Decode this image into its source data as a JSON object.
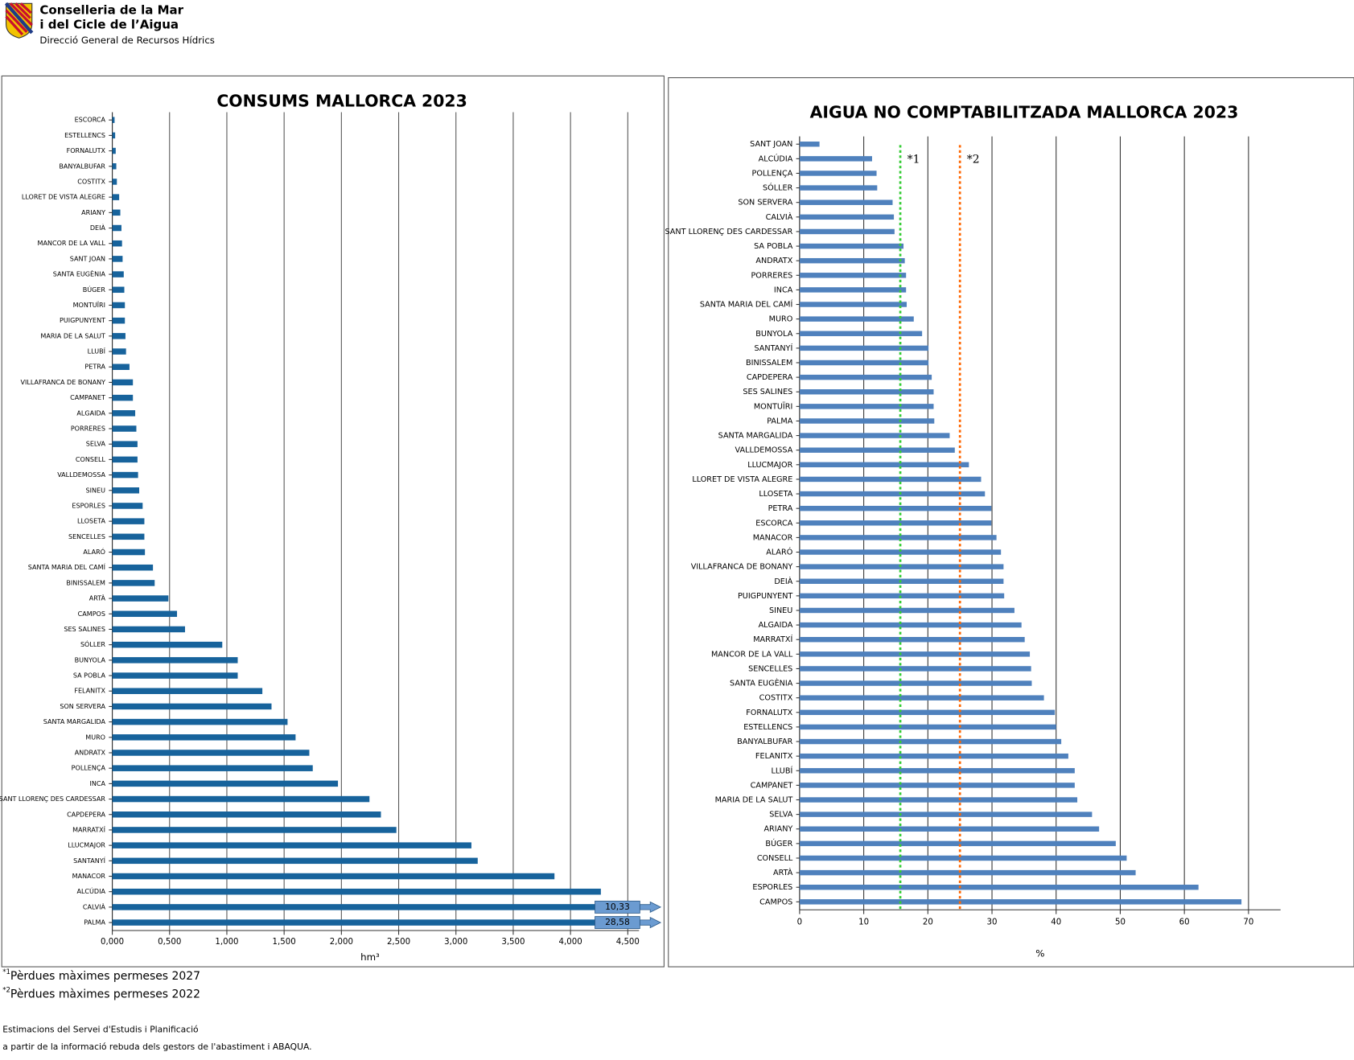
{
  "header": {
    "title_line1": "Conselleria de la Mar",
    "title_line2": "i del Cicle de l’Aigua",
    "subtitle": "Direcció General de Recursos Hídrics"
  },
  "chart_data": [
    {
      "type": "hbar",
      "title": "CONSUMS MALLORCA 2023",
      "x_label": "hm³",
      "color": "#17639c",
      "grid": true,
      "categories": [
        "ESCORCA",
        "ESTELLENCS",
        "FORNALUTX",
        "BANYALBUFAR",
        "COSTITX",
        "LLORET DE VISTA ALEGRE",
        "ARIANY",
        "DEIÀ",
        "MANCOR DE LA VALL",
        "SANT JOAN",
        "SANTA EUGÈNIA",
        "BÚGER",
        "MONTUÏRI",
        "PUIGPUNYENT",
        "MARIA DE LA SALUT",
        "LLUBÍ",
        "PETRA",
        "VILLAFRANCA DE BONANY",
        "CAMPANET",
        "ALGAIDA",
        "PORRERES",
        "SELVA",
        "CONSELL",
        "VALLDEMOSSA",
        "SINEU",
        "ESPORLES",
        "LLOSETA",
        "SENCELLES",
        "ALARÓ",
        "SANTA MARIA DEL CAMÍ",
        "BINISSALEM",
        "ARTÀ",
        "CAMPOS",
        "SES SALINES",
        "SÓLLER",
        "BUNYOLA",
        "SA POBLA",
        "FELANITX",
        "SON SERVERA",
        "SANTA MARGALIDA",
        "MURO",
        "ANDRATX",
        "POLLENÇA",
        "INCA",
        "SANT LLORENÇ DES CARDESSAR",
        "CAPDEPERA",
        "MARRATXÍ",
        "LLUCMAJOR",
        "SANTANYÍ",
        "MANACOR",
        "ALCÚDIA",
        "CALVIÀ",
        "PALMA"
      ],
      "values": [
        0.02,
        0.025,
        0.03,
        0.035,
        0.04,
        0.06,
        0.07,
        0.08,
        0.085,
        0.09,
        0.1,
        0.105,
        0.11,
        0.11,
        0.115,
        0.12,
        0.15,
        0.18,
        0.18,
        0.2,
        0.21,
        0.22,
        0.22,
        0.225,
        0.235,
        0.265,
        0.28,
        0.28,
        0.285,
        0.355,
        0.37,
        0.49,
        0.565,
        0.635,
        0.96,
        1.095,
        1.095,
        1.31,
        1.39,
        1.53,
        1.6,
        1.72,
        1.75,
        1.97,
        2.245,
        2.345,
        2.48,
        3.135,
        3.19,
        3.86,
        4.265,
        10.33,
        28.58
      ],
      "value_labels": [
        null,
        null,
        null,
        null,
        null,
        null,
        null,
        null,
        null,
        null,
        null,
        null,
        null,
        null,
        null,
        null,
        null,
        null,
        null,
        null,
        null,
        null,
        null,
        null,
        null,
        null,
        null,
        null,
        null,
        null,
        null,
        null,
        null,
        null,
        null,
        null,
        null,
        null,
        null,
        null,
        null,
        null,
        null,
        null,
        null,
        null,
        null,
        null,
        null,
        null,
        null,
        "10,33",
        "28,58"
      ],
      "xlim": [
        0,
        4.5
      ],
      "xticks": [
        {
          "value": 0,
          "label": "0,000"
        },
        {
          "value": 0.5,
          "label": "0,500"
        },
        {
          "value": 1,
          "label": "1,000"
        },
        {
          "value": 1.5,
          "label": "1,500"
        },
        {
          "value": 2,
          "label": "2,000"
        },
        {
          "value": 2.5,
          "label": "2,500"
        },
        {
          "value": 3,
          "label": "3,000"
        },
        {
          "value": 3.5,
          "label": "3,500"
        },
        {
          "value": 4,
          "label": "4,000"
        },
        {
          "value": 4.5,
          "label": "4,500"
        }
      ]
    },
    {
      "type": "hbar",
      "title": "AIGUA NO COMPTABILITZADA MALLORCA 2023",
      "x_label": "%",
      "color": "#4f81bd",
      "grid": true,
      "categories": [
        "SANT JOAN",
        "ALCÚDIA",
        "POLLENÇA",
        "SÓLLER",
        "SON SERVERA",
        "CALVIÀ",
        "SANT LLORENÇ DES CARDESSAR",
        "SA POBLA",
        "ANDRATX",
        "PORRERES",
        "INCA",
        "SANTA MARIA DEL CAMÍ",
        "MURO",
        "BUNYOLA",
        "SANTANYÍ",
        "BINISSALEM",
        "CAPDEPERA",
        "SES SALINES",
        "MONTUÏRI",
        "PALMA",
        "SANTA MARGALIDA",
        "VALLDEMOSSA",
        "LLUCMAJOR",
        "LLORET DE VISTA ALEGRE",
        "LLOSETA",
        "PETRA",
        "ESCORCA",
        "MANACOR",
        "ALARÓ",
        "VILLAFRANCA DE BONANY",
        "DEIÀ",
        "PUIGPUNYENT",
        "SINEU",
        "ALGAIDA",
        "MARRATXÍ",
        "MANCOR DE LA VALL",
        "SENCELLES",
        "SANTA EUGÈNIA",
        "COSTITX",
        "FORNALUTX",
        "ESTELLENCS",
        "BANYALBUFAR",
        "FELANITX",
        "LLUBÍ",
        "CAMPANET",
        "MARIA DE LA SALUT",
        "SELVA",
        "ARIANY",
        "BÚGER",
        "CONSELL",
        "ARTÀ",
        "ESPORLES",
        "CAMPOS"
      ],
      "values": [
        3.1,
        11.3,
        12.0,
        12.1,
        14.5,
        14.7,
        14.8,
        16.2,
        16.4,
        16.6,
        16.6,
        16.7,
        17.8,
        19.1,
        20.1,
        20.1,
        20.6,
        20.9,
        20.9,
        21.0,
        23.4,
        24.2,
        26.4,
        28.3,
        28.9,
        29.9,
        29.9,
        30.7,
        31.4,
        31.8,
        31.8,
        31.9,
        33.5,
        34.6,
        35.1,
        35.9,
        36.1,
        36.2,
        38.1,
        39.8,
        40.0,
        40.8,
        41.9,
        42.9,
        42.9,
        43.3,
        45.6,
        46.7,
        49.3,
        51.0,
        52.4,
        62.2,
        68.9
      ],
      "xlim": [
        0,
        75
      ],
      "xticks": [
        0,
        10,
        20,
        30,
        40,
        50,
        60,
        70
      ],
      "reference_lines": [
        {
          "value": 15.7,
          "label": "*1",
          "color": "#33cc33"
        },
        {
          "value": 25,
          "label": "*2",
          "color": "#ff6600"
        }
      ]
    }
  ],
  "footer": {
    "notes": [
      {
        "mark": "*1",
        "text": "Pèrdues màximes permeses 2027"
      },
      {
        "mark": "*2",
        "text": "Pèrdues màximes permeses 2022"
      }
    ],
    "source_line1": "Estimacions del Servei d'Estudis i Planificació",
    "source_line2": "a partir de la informació rebuda dels gestors de l'abastiment i ABAQUA."
  }
}
